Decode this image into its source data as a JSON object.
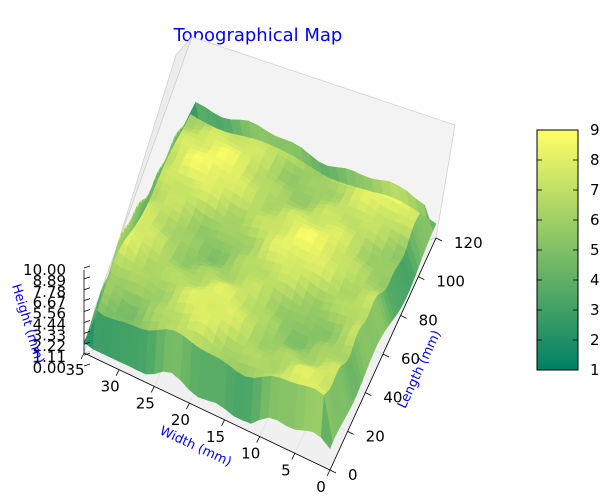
{
  "chart_data": {
    "type": "surface3d",
    "title": "Topographical Map",
    "xlabel": "Width (mm)",
    "ylabel": "Length (mm)",
    "zlabel": "Height (mm)",
    "x_ticks": [
      "0",
      "5",
      "10",
      "15",
      "20",
      "25",
      "30",
      "35"
    ],
    "y_ticks": [
      "0",
      "20",
      "40",
      "60",
      "80",
      "100",
      "120"
    ],
    "z_ticks": [
      "0.00",
      "1.11",
      "2.22",
      "3.33",
      "4.44",
      "5.56",
      "6.67",
      "7.78",
      "8.89",
      "10.00"
    ],
    "xlim": [
      0,
      35
    ],
    "ylim": [
      0,
      120
    ],
    "zlim": [
      0,
      10
    ],
    "colormap": "summer",
    "colorbar_ticks": [
      "1",
      "2",
      "3",
      "4",
      "5",
      "6",
      "7",
      "8",
      "9"
    ],
    "colorbar_range": [
      1,
      9
    ],
    "surface_value_range": [
      1,
      9
    ],
    "grid": true
  },
  "colors": {
    "title": "#0000ff",
    "axis_label": "#0000ff",
    "pane": "#f2f2f2",
    "grid": "#e6e6e6",
    "cmap_low": "#008066",
    "cmap_high": "#ffff66"
  }
}
